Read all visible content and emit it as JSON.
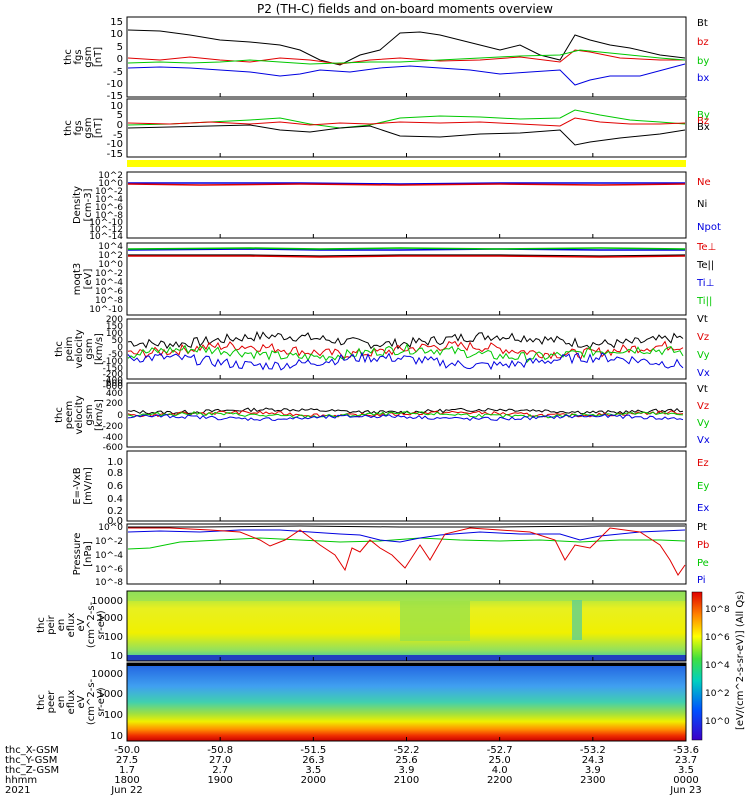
{
  "title": "P2 (TH-C) fields and on-board moments overview",
  "colors": {
    "black": "#000000",
    "red": "#e00000",
    "green": "#00c800",
    "blue": "#0000e0",
    "yellow": "#ffff00"
  },
  "x_axis": {
    "ticks": [
      "1800",
      "1900",
      "2000",
      "2100",
      "2200",
      "2300",
      "0000"
    ],
    "row_labels": [
      "thc_X-GSM",
      "thc_Y-GSM",
      "thc_Z-GSM",
      "hhmm",
      "2021"
    ],
    "rows": {
      "x": [
        "-50.0",
        "-50.8",
        "-51.5",
        "-52.2",
        "-52.7",
        "-53.2",
        "-53.6"
      ],
      "y": [
        "27.5",
        "27.0",
        "26.3",
        "25.6",
        "25.0",
        "24.3",
        "23.7"
      ],
      "z": [
        "1.7",
        "2.7",
        "3.5",
        "3.9",
        "4.0",
        "3.9",
        "3.5"
      ]
    },
    "dates": {
      "start": "Jun 22",
      "end": "Jun 23"
    }
  },
  "colorbar": {
    "label": "[eV/(cm^2-s-sr-eV)] (All Qs)",
    "ticks": [
      "10^8",
      "10^6",
      "10^4",
      "10^2",
      "10^0"
    ]
  },
  "chart_data": [
    {
      "type": "line",
      "ylabel": "thc fgs gsm [nT]",
      "ylim": [
        -15,
        15
      ],
      "ticks": [
        "15",
        "10",
        "5",
        "0",
        "-5",
        "-10",
        "-15"
      ],
      "series": [
        {
          "name": "Bt",
          "color": "#000000",
          "level": 10
        },
        {
          "name": "bz",
          "color": "#e00000",
          "level": 0
        },
        {
          "name": "by",
          "color": "#00c800",
          "level": 1
        },
        {
          "name": "bx",
          "color": "#0000e0",
          "level": -3
        }
      ]
    },
    {
      "type": "line",
      "ylabel": "thc fgs gsm [nT]",
      "ylim": [
        -15,
        15
      ],
      "ticks": [
        "10",
        "5",
        "0",
        "-5",
        "-10",
        "-15"
      ],
      "series": [
        {
          "name": "By",
          "color": "#00c800",
          "level": 2
        },
        {
          "name": "Bz",
          "color": "#e00000",
          "level": 0
        },
        {
          "name": "Bx",
          "color": "#000000",
          "level": 0
        }
      ]
    },
    {
      "type": "line",
      "ylabel": "Density [cm-3]",
      "ticks": [
        "10^2",
        "10^0",
        "10^-2",
        "10^-4",
        "10^-6",
        "10^-8",
        "10^-10",
        "10^-12",
        "10^-14"
      ],
      "series": [
        {
          "name": "Ne",
          "color": "#e00000"
        },
        {
          "name": "Ni",
          "color": "#000000"
        },
        {
          "name": "Npot",
          "color": "#0000e0"
        }
      ]
    },
    {
      "type": "line",
      "ylabel": "moqt3 [eV]",
      "ticks": [
        "10^4",
        "10^2",
        "10^0",
        "10^-2",
        "10^-4",
        "10^-6",
        "10^-8",
        "10^-10"
      ],
      "series": [
        {
          "name": "Te⊥",
          "color": "#e00000"
        },
        {
          "name": "Te||",
          "color": "#000000"
        },
        {
          "name": "Ti⊥",
          "color": "#0000e0"
        },
        {
          "name": "Ti||",
          "color": "#00c800"
        }
      ]
    },
    {
      "type": "line",
      "ylabel": "thc peim velocity gsm [km/s]",
      "ylim": [
        -600,
        200
      ],
      "ticks": [
        "200",
        "150",
        "100",
        "50",
        "0",
        "-50",
        "-100",
        "-150",
        "-200",
        "-400",
        "-600"
      ],
      "series": [
        {
          "name": "Vt",
          "color": "#000000",
          "level": 80
        },
        {
          "name": "Vz",
          "color": "#e00000",
          "level": 20
        },
        {
          "name": "Vy",
          "color": "#00c800",
          "level": 0
        },
        {
          "name": "Vx",
          "color": "#0000e0",
          "level": -50
        }
      ]
    },
    {
      "type": "line",
      "ylabel": "thc peem velocity gsm [km/s]",
      "ylim": [
        -600,
        600
      ],
      "ticks": [
        "600",
        "400",
        "200",
        "0",
        "-200",
        "-400",
        "-600"
      ],
      "series": [
        {
          "name": "Vt",
          "color": "#000000",
          "level": 80
        },
        {
          "name": "Vz",
          "color": "#e00000",
          "level": 20
        },
        {
          "name": "Vy",
          "color": "#00c800",
          "level": 0
        },
        {
          "name": "Vx",
          "color": "#0000e0",
          "level": -50
        }
      ]
    },
    {
      "type": "line",
      "ylabel": "E=-VxB [mV/m]",
      "ylim": [
        0,
        1
      ],
      "ticks": [
        "1.0",
        "0.8",
        "0.6",
        "0.4",
        "0.2",
        "0.0"
      ],
      "series": [
        {
          "name": "Ez",
          "color": "#e00000"
        },
        {
          "name": "Ey",
          "color": "#00c800"
        },
        {
          "name": "Ex",
          "color": "#0000e0"
        }
      ]
    },
    {
      "type": "line",
      "ylabel": "Pressure [nPa]",
      "ticks": [
        "10^0",
        "10^-2",
        "10^-4",
        "10^-6",
        "10^-8"
      ],
      "series": [
        {
          "name": "Pt",
          "color": "#000000"
        },
        {
          "name": "Pb",
          "color": "#e00000"
        },
        {
          "name": "Pe",
          "color": "#00c800"
        },
        {
          "name": "Pi",
          "color": "#0000e0"
        }
      ]
    },
    {
      "type": "heatmap",
      "ylabel": "thc peir en eflux eV (cm^2-s-sr-eV)",
      "ticks": [
        "10000",
        "1000",
        "100",
        "10"
      ]
    },
    {
      "type": "heatmap",
      "ylabel": "thc peer en eflux eV (cm^2-s-sr-eV)",
      "ticks": [
        "10000",
        "1000",
        "100",
        "10"
      ]
    }
  ]
}
